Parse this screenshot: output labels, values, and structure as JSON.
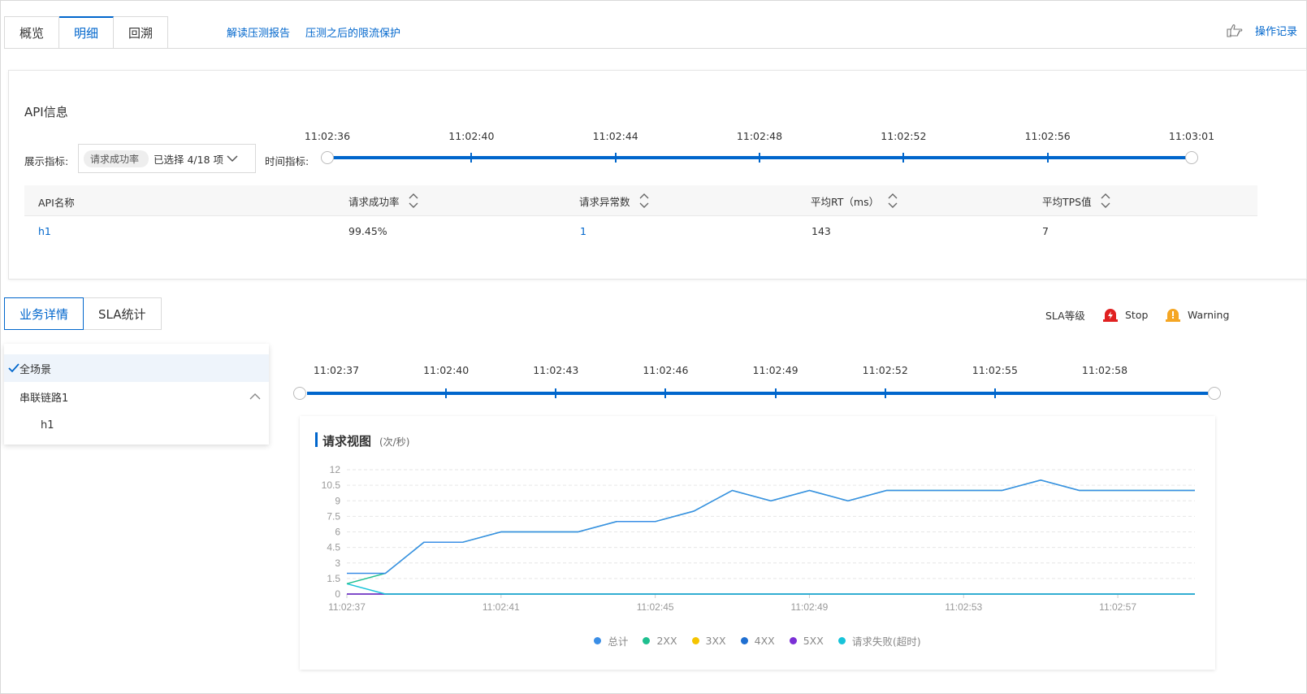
{
  "top_tabs": [
    {
      "label": "概览",
      "active": false
    },
    {
      "label": "明细",
      "active": true
    },
    {
      "label": "回溯",
      "active": false
    }
  ],
  "top_links": [
    "解读压测报告",
    "压测之后的限流保护"
  ],
  "operation_record": "操作记录",
  "api_panel": {
    "title": "API信息",
    "metric_label": "展示指标:",
    "metric_chip": "请求成功率",
    "metric_selected": "已选择 4/18 项",
    "time_label": "时间指标:",
    "time_ticks": [
      "11:02:36",
      "11:02:40",
      "11:02:44",
      "11:02:48",
      "11:02:52",
      "11:02:56",
      "11:03:01"
    ],
    "columns": [
      "API名称",
      "请求成功率",
      "请求异常数",
      "平均RT（ms）",
      "平均TPS值"
    ],
    "rows": [
      {
        "api": "h1",
        "success_rate": "99.45%",
        "errors": "1",
        "avg_rt": "143",
        "avg_tps": "7"
      }
    ]
  },
  "section_tabs": [
    {
      "label": "业务详情",
      "active": true
    },
    {
      "label": "SLA统计",
      "active": false
    }
  ],
  "sla": {
    "label": "SLA等级",
    "stop": "Stop",
    "warning": "Warning",
    "stop_color": "#e02020",
    "warning_color": "#f5a623"
  },
  "scenes": {
    "all": "全场景",
    "chain": "串联链路1",
    "api": "h1"
  },
  "timeline2_ticks": [
    "11:02:37",
    "11:02:40",
    "11:02:43",
    "11:02:46",
    "11:02:49",
    "11:02:52",
    "11:02:55",
    "11:02:58"
  ],
  "chart_title": "请求视图",
  "chart_unit": "(次/秒)",
  "chart_data": {
    "type": "line",
    "y_ticks": [
      "12",
      "10.5",
      "9",
      "7.5",
      "6",
      "4.5",
      "3",
      "1.5",
      "0"
    ],
    "ylim": [
      0,
      12
    ],
    "x_tick_labels": [
      "11:02:37",
      "11:02:41",
      "11:02:45",
      "11:02:49",
      "11:02:53",
      "11:02:57"
    ],
    "x": [
      "11:02:37",
      "11:02:38",
      "11:02:39",
      "11:02:40",
      "11:02:41",
      "11:02:42",
      "11:02:43",
      "11:02:44",
      "11:02:45",
      "11:02:46",
      "11:02:47",
      "11:02:48",
      "11:02:49",
      "11:02:50",
      "11:02:51",
      "11:02:52",
      "11:02:53",
      "11:02:54",
      "11:02:55",
      "11:02:56",
      "11:02:57",
      "11:02:58",
      "11:02:59"
    ],
    "series": [
      {
        "name": "总计",
        "color": "#3a8ee6",
        "values": [
          2,
          2,
          5,
          5,
          6,
          6,
          6,
          7,
          7,
          8,
          10,
          9,
          10,
          9,
          10,
          10,
          10,
          10,
          11,
          10,
          10,
          10,
          10
        ]
      },
      {
        "name": "2XX",
        "color": "#1fbf8f",
        "values": [
          1,
          2,
          5,
          5,
          6,
          6,
          6,
          7,
          7,
          8,
          10,
          9,
          10,
          9,
          10,
          10,
          10,
          10,
          11,
          10,
          10,
          10,
          10
        ]
      },
      {
        "name": "3XX",
        "color": "#f5c400",
        "values": [
          0,
          0,
          0,
          0,
          0,
          0,
          0,
          0,
          0,
          0,
          0,
          0,
          0,
          0,
          0,
          0,
          0,
          0,
          0,
          0,
          0,
          0,
          0
        ]
      },
      {
        "name": "4XX",
        "color": "#1f6fd1",
        "values": [
          0,
          0,
          0,
          0,
          0,
          0,
          0,
          0,
          0,
          0,
          0,
          0,
          0,
          0,
          0,
          0,
          0,
          0,
          0,
          0,
          0,
          0,
          0
        ]
      },
      {
        "name": "5XX",
        "color": "#7b2fd6",
        "values": [
          0,
          0,
          0,
          0,
          0,
          0,
          0,
          0,
          0,
          0,
          0,
          0,
          0,
          0,
          0,
          0,
          0,
          0,
          0,
          0,
          0,
          0,
          0
        ]
      },
      {
        "name": "请求失败(超时)",
        "color": "#17c3d9",
        "values": [
          1,
          0,
          0,
          0,
          0,
          0,
          0,
          0,
          0,
          0,
          0,
          0,
          0,
          0,
          0,
          0,
          0,
          0,
          0,
          0,
          0,
          0,
          0
        ]
      }
    ],
    "grid": true,
    "legend": "bottom"
  }
}
